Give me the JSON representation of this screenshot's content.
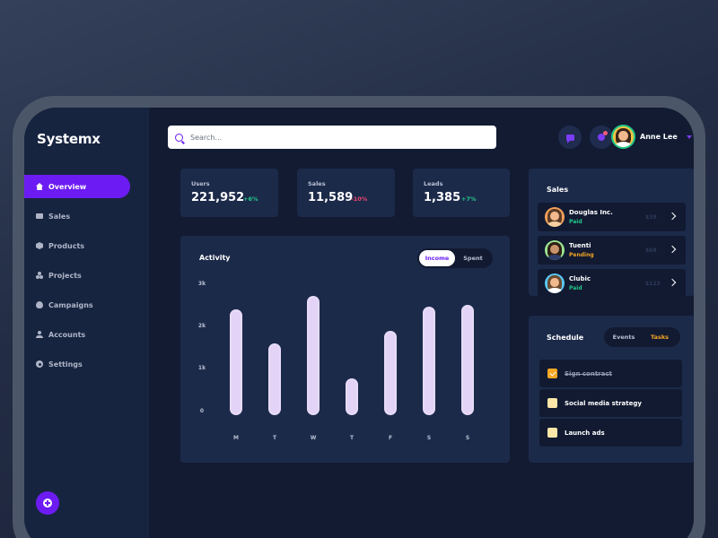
{
  "brand": "Systemx",
  "sidebar": {
    "items": [
      {
        "label": "Overview",
        "icon": "home-icon",
        "active": true
      },
      {
        "label": "Sales",
        "icon": "sales-icon"
      },
      {
        "label": "Products",
        "icon": "box-icon"
      },
      {
        "label": "Projects",
        "icon": "projects-icon"
      },
      {
        "label": "Campaigns",
        "icon": "flame-icon"
      },
      {
        "label": "Accounts",
        "icon": "user-icon"
      },
      {
        "label": "Settings",
        "icon": "gear-icon"
      }
    ],
    "fab_icon": "plus-icon"
  },
  "search": {
    "placeholder": "Search...",
    "value": ""
  },
  "header": {
    "user_name": "Anne Lee"
  },
  "stats": [
    {
      "label": "Users",
      "value": "221,952",
      "change": "+6%",
      "trend": "up"
    },
    {
      "label": "Sales",
      "value": "11,589",
      "change": "-10%",
      "trend": "down"
    },
    {
      "label": "Leads",
      "value": "1,385",
      "change": "+7%",
      "trend": "up"
    }
  ],
  "activity": {
    "title": "Activity",
    "toggle": {
      "options": [
        "Income",
        "Spent"
      ],
      "selected": "Income"
    }
  },
  "chart_data": {
    "type": "bar",
    "categories": [
      "M",
      "T",
      "W",
      "T",
      "F",
      "S",
      "S"
    ],
    "values": [
      2.45,
      1.65,
      2.75,
      0.85,
      1.95,
      2.5,
      2.55
    ],
    "yticks": [
      "3k",
      "2k",
      "1k",
      "0"
    ],
    "ylim": [
      0,
      3
    ],
    "title": "Activity",
    "bar_color": "#e2d3f7"
  },
  "sales_panel": {
    "title": "Sales",
    "items": [
      {
        "name": "Douglas Inc.",
        "status": "Paid",
        "amount": "$39"
      },
      {
        "name": "Tuenti",
        "status": "Pending",
        "amount": "$68"
      },
      {
        "name": "Clubic",
        "status": "Paid",
        "amount": "$123"
      }
    ]
  },
  "schedule": {
    "title": "Schedule",
    "tabs": [
      "Events",
      "Tasks"
    ],
    "active_tab": "Tasks",
    "tasks": [
      {
        "label": "Sign contract",
        "done": true
      },
      {
        "label": "Social media strategy",
        "done": false
      },
      {
        "label": "Launch ads",
        "done": false
      }
    ]
  },
  "colors": {
    "accent": "#6c1cf2",
    "positive": "#23c98a",
    "negative": "#f0476b",
    "warning": "#f5a623"
  }
}
